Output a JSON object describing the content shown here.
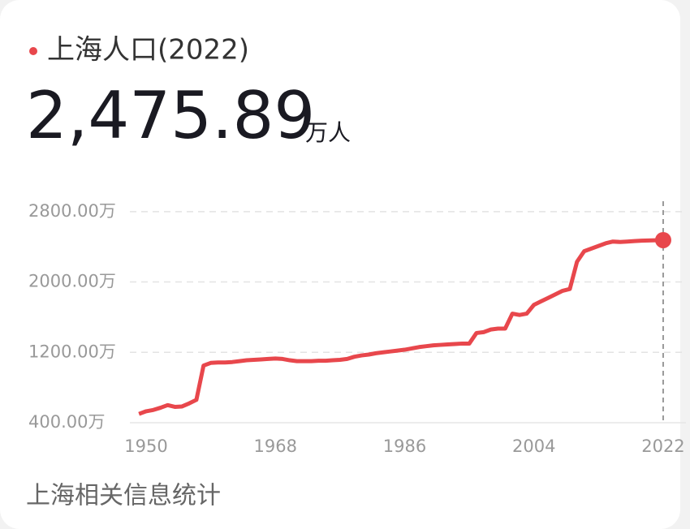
{
  "header": {
    "title": "上海人口(2022)",
    "value": "2,475.89",
    "unit": "万人"
  },
  "chart_data": {
    "type": "line",
    "color": "#e8474c",
    "grid": true,
    "x": [
      1949,
      1950,
      1951,
      1952,
      1953,
      1954,
      1955,
      1956,
      1957,
      1958,
      1959,
      1960,
      1961,
      1962,
      1963,
      1964,
      1965,
      1966,
      1967,
      1968,
      1969,
      1970,
      1971,
      1972,
      1973,
      1974,
      1975,
      1976,
      1977,
      1978,
      1979,
      1980,
      1981,
      1982,
      1983,
      1984,
      1985,
      1986,
      1987,
      1988,
      1989,
      1990,
      1991,
      1992,
      1993,
      1994,
      1995,
      1996,
      1997,
      1998,
      1999,
      2000,
      2001,
      2002,
      2003,
      2004,
      2005,
      2006,
      2007,
      2008,
      2009,
      2010,
      2011,
      2012,
      2013,
      2014,
      2015,
      2016,
      2017,
      2018,
      2019,
      2020,
      2021,
      2022
    ],
    "values": [
      500,
      530,
      545,
      570,
      600,
      580,
      585,
      620,
      660,
      1050,
      1080,
      1085,
      1085,
      1090,
      1100,
      1110,
      1115,
      1120,
      1125,
      1130,
      1125,
      1110,
      1100,
      1100,
      1100,
      1105,
      1105,
      1110,
      1115,
      1125,
      1150,
      1165,
      1175,
      1190,
      1200,
      1210,
      1220,
      1230,
      1245,
      1260,
      1270,
      1280,
      1285,
      1290,
      1295,
      1300,
      1300,
      1420,
      1430,
      1460,
      1470,
      1470,
      1640,
      1625,
      1640,
      1740,
      1780,
      1820,
      1860,
      1900,
      1920,
      2230,
      2350,
      2380,
      2410,
      2440,
      2460,
      2455,
      2460,
      2465,
      2470,
      2472,
      2475,
      2475.89
    ],
    "xlim": [
      1948,
      2025
    ],
    "xticks": [
      1950,
      1968,
      1986,
      2004,
      2022
    ],
    "ylim": [
      400,
      2900
    ],
    "yticks": [
      {
        "value": 400,
        "label": "400.00万"
      },
      {
        "value": 1200,
        "label": "1200.00万"
      },
      {
        "value": 2000,
        "label": "2000.00万"
      },
      {
        "value": 2800,
        "label": "2800.00万"
      }
    ]
  },
  "footer": "上海相关信息统计"
}
